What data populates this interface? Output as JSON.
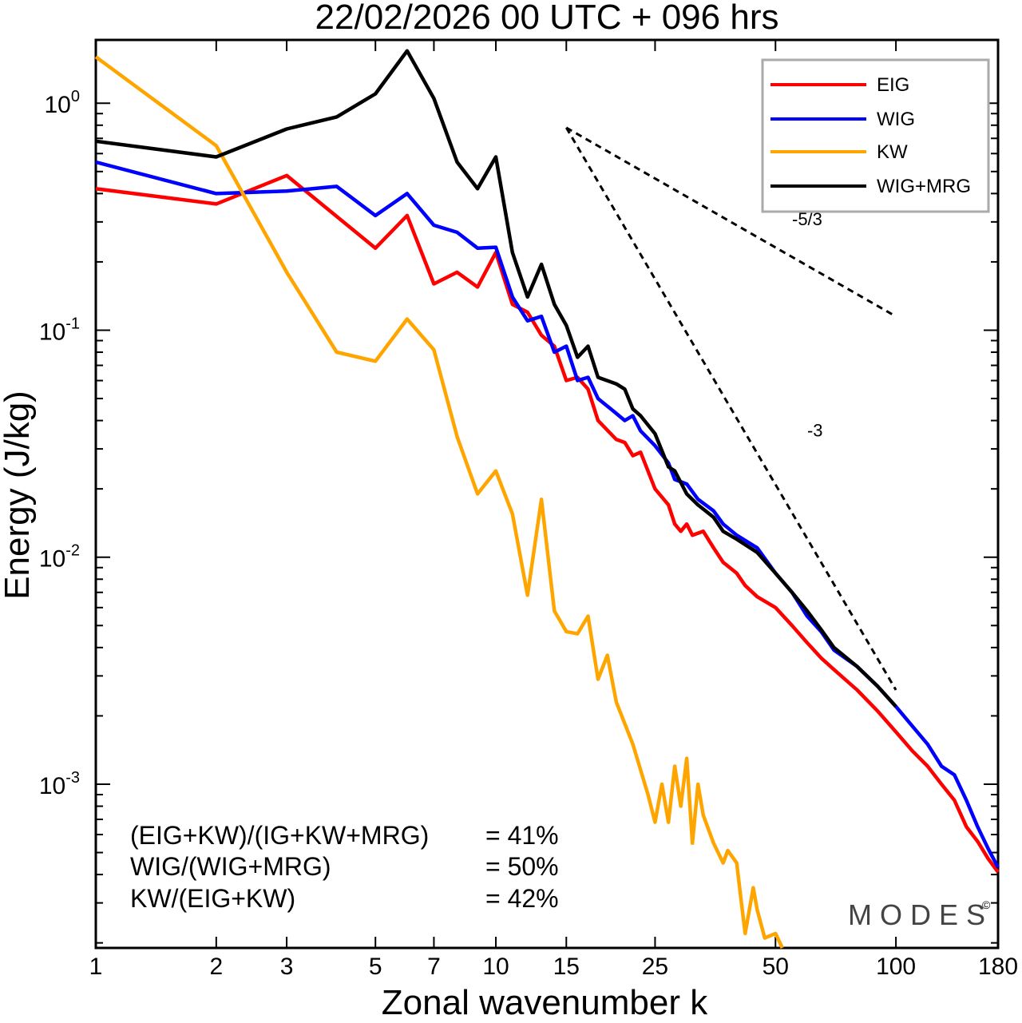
{
  "chart_data": {
    "type": "line",
    "title": "22/02/2026  00 UTC  + 096 hrs",
    "xlabel": "Zonal wavenumber k",
    "ylabel": "Energy (J/kg)",
    "xscale": "log",
    "yscale": "log",
    "xlim": [
      1,
      180
    ],
    "ylim": [
      0.00019,
      1.9
    ],
    "xticks": [
      1,
      2,
      3,
      5,
      7,
      10,
      15,
      25,
      50,
      100,
      180
    ],
    "yticks": [
      {
        "value": 1,
        "base": "10",
        "exp": "0"
      },
      {
        "value": 0.1,
        "base": "10",
        "exp": "-1"
      },
      {
        "value": 0.01,
        "base": "10",
        "exp": "-2"
      },
      {
        "value": 0.001,
        "base": "10",
        "exp": "-3"
      }
    ],
    "series": [
      {
        "name": "EIG",
        "color": "#ff0000",
        "points": [
          [
            1,
            0.42
          ],
          [
            2,
            0.36
          ],
          [
            3,
            0.48
          ],
          [
            5,
            0.23
          ],
          [
            6,
            0.32
          ],
          [
            7,
            0.16
          ],
          [
            8,
            0.18
          ],
          [
            9,
            0.155
          ],
          [
            10,
            0.22
          ],
          [
            11,
            0.13
          ],
          [
            12,
            0.12
          ],
          [
            13,
            0.095
          ],
          [
            14,
            0.085
          ],
          [
            15,
            0.06
          ],
          [
            16,
            0.062
          ],
          [
            17,
            0.055
          ],
          [
            18,
            0.04
          ],
          [
            20,
            0.033
          ],
          [
            21,
            0.032
          ],
          [
            22,
            0.028
          ],
          [
            23,
            0.029
          ],
          [
            25,
            0.02
          ],
          [
            27,
            0.017
          ],
          [
            28,
            0.014
          ],
          [
            29,
            0.013
          ],
          [
            30,
            0.014
          ],
          [
            31,
            0.0125
          ],
          [
            33,
            0.013
          ],
          [
            35,
            0.011
          ],
          [
            37,
            0.0095
          ],
          [
            40,
            0.0085
          ],
          [
            42,
            0.0075
          ],
          [
            45,
            0.0067
          ],
          [
            50,
            0.006
          ],
          [
            55,
            0.005
          ],
          [
            60,
            0.0042
          ],
          [
            65,
            0.0036
          ],
          [
            70,
            0.0032
          ],
          [
            80,
            0.0026
          ],
          [
            90,
            0.0021
          ],
          [
            100,
            0.0017
          ],
          [
            110,
            0.0014
          ],
          [
            120,
            0.0012
          ],
          [
            130,
            0.001
          ],
          [
            140,
            0.00085
          ],
          [
            150,
            0.00065
          ],
          [
            160,
            0.00056
          ],
          [
            170,
            0.00047
          ],
          [
            180,
            0.00041
          ]
        ]
      },
      {
        "name": "WIG",
        "color": "#0000ff",
        "points": [
          [
            1,
            0.55
          ],
          [
            2,
            0.4
          ],
          [
            3,
            0.41
          ],
          [
            4,
            0.43
          ],
          [
            5,
            0.32
          ],
          [
            6,
            0.4
          ],
          [
            7,
            0.29
          ],
          [
            8,
            0.27
          ],
          [
            9,
            0.23
          ],
          [
            10,
            0.232
          ],
          [
            11,
            0.14
          ],
          [
            12,
            0.11
          ],
          [
            13,
            0.115
          ],
          [
            14,
            0.08
          ],
          [
            15,
            0.085
          ],
          [
            16,
            0.06
          ],
          [
            17,
            0.062
          ],
          [
            18,
            0.05
          ],
          [
            20,
            0.043
          ],
          [
            21,
            0.04
          ],
          [
            22,
            0.042
          ],
          [
            23,
            0.036
          ],
          [
            25,
            0.031
          ],
          [
            27,
            0.026
          ],
          [
            28,
            0.022
          ],
          [
            30,
            0.021
          ],
          [
            32,
            0.018
          ],
          [
            35,
            0.016
          ],
          [
            37,
            0.014
          ],
          [
            40,
            0.0125
          ],
          [
            45,
            0.011
          ],
          [
            50,
            0.0085
          ],
          [
            55,
            0.007
          ],
          [
            60,
            0.0055
          ],
          [
            65,
            0.0047
          ],
          [
            70,
            0.0039
          ],
          [
            80,
            0.0033
          ],
          [
            90,
            0.0027
          ],
          [
            100,
            0.0022
          ],
          [
            110,
            0.0018
          ],
          [
            120,
            0.0015
          ],
          [
            130,
            0.0012
          ],
          [
            140,
            0.0011
          ],
          [
            150,
            0.00085
          ],
          [
            160,
            0.00065
          ],
          [
            170,
            0.00052
          ],
          [
            180,
            0.00043
          ]
        ]
      },
      {
        "name": "KW",
        "color": "#ffa500",
        "points": [
          [
            1,
            1.6
          ],
          [
            2,
            0.65
          ],
          [
            3,
            0.18
          ],
          [
            4,
            0.08
          ],
          [
            5,
            0.073
          ],
          [
            6,
            0.112
          ],
          [
            7,
            0.082
          ],
          [
            8,
            0.034
          ],
          [
            9,
            0.019
          ],
          [
            10,
            0.024
          ],
          [
            11,
            0.0155
          ],
          [
            12,
            0.0068
          ],
          [
            13,
            0.018
          ],
          [
            14,
            0.0058
          ],
          [
            15,
            0.0047
          ],
          [
            16,
            0.0046
          ],
          [
            17,
            0.0055
          ],
          [
            18,
            0.0029
          ],
          [
            19,
            0.0037
          ],
          [
            20,
            0.0023
          ],
          [
            22,
            0.0015
          ],
          [
            24,
            0.0009
          ],
          [
            25,
            0.00068
          ],
          [
            26,
            0.001
          ],
          [
            27,
            0.00068
          ],
          [
            28,
            0.0012
          ],
          [
            29,
            0.0008
          ],
          [
            30,
            0.0013
          ],
          [
            31,
            0.00055
          ],
          [
            32,
            0.001
          ],
          [
            33,
            0.00073
          ],
          [
            35,
            0.00055
          ],
          [
            37,
            0.00045
          ],
          [
            38,
            0.00051
          ],
          [
            40,
            0.00045
          ],
          [
            41,
            0.00031
          ],
          [
            42,
            0.00022
          ],
          [
            44,
            0.00035
          ],
          [
            45,
            0.00028
          ],
          [
            47,
            0.00021
          ],
          [
            50,
            0.00022
          ],
          [
            52,
            0.00019
          ]
        ]
      },
      {
        "name": "WIG+MRG",
        "color": "#000000",
        "points": [
          [
            1,
            0.68
          ],
          [
            2,
            0.58
          ],
          [
            3,
            0.77
          ],
          [
            4,
            0.87
          ],
          [
            5,
            1.1
          ],
          [
            6,
            1.7
          ],
          [
            7,
            1.05
          ],
          [
            8,
            0.55
          ],
          [
            9,
            0.42
          ],
          [
            10,
            0.58
          ],
          [
            11,
            0.22
          ],
          [
            12,
            0.14
          ],
          [
            13,
            0.195
          ],
          [
            14,
            0.13
          ],
          [
            15,
            0.105
          ],
          [
            16,
            0.076
          ],
          [
            17,
            0.085
          ],
          [
            18,
            0.062
          ],
          [
            20,
            0.058
          ],
          [
            21,
            0.055
          ],
          [
            22,
            0.045
          ],
          [
            23,
            0.042
          ],
          [
            25,
            0.035
          ],
          [
            27,
            0.025
          ],
          [
            28,
            0.024
          ],
          [
            30,
            0.019
          ],
          [
            32,
            0.017
          ],
          [
            35,
            0.015
          ],
          [
            37,
            0.013
          ],
          [
            40,
            0.012
          ],
          [
            45,
            0.0105
          ],
          [
            50,
            0.0085
          ],
          [
            55,
            0.007
          ],
          [
            60,
            0.0058
          ],
          [
            65,
            0.0048
          ],
          [
            70,
            0.004
          ],
          [
            80,
            0.0033
          ],
          [
            90,
            0.0027
          ],
          [
            100,
            0.0022
          ]
        ]
      }
    ],
    "reference_lines": [
      {
        "label": "-5/3",
        "points": [
          [
            15,
            0.78
          ],
          [
            100,
            0.115
          ]
        ],
        "label_at": [
          55,
          0.29
        ]
      },
      {
        "label": "-3",
        "points": [
          [
            15,
            0.78
          ],
          [
            100,
            0.0026
          ]
        ],
        "label_at": [
          60,
          0.034
        ]
      }
    ],
    "legend": {
      "position": "top-right",
      "entries": [
        "EIG",
        "WIG",
        "KW",
        "WIG+MRG"
      ]
    },
    "annotations": [
      {
        "label": "(EIG+KW)/(IG+KW+MRG)",
        "value": "= 41%"
      },
      {
        "label": "WIG/(WIG+MRG)",
        "value": "= 50%"
      },
      {
        "label": "KW/(EIG+KW)",
        "value": "= 42%"
      }
    ],
    "watermark": "MODES",
    "watermark_mark": "©"
  }
}
